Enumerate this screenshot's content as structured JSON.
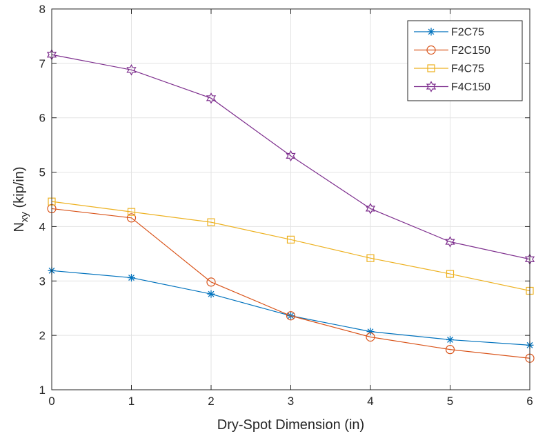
{
  "chart_data": {
    "type": "line",
    "title": "",
    "xlabel": "Dry-Spot Dimension (in)",
    "ylabel": "N_xy (kip/in)",
    "ylabel_parts": {
      "main": "N",
      "subscript": "xy",
      "rest": " (kip/in)"
    },
    "xlim": [
      0,
      6
    ],
    "ylim": [
      1,
      8
    ],
    "x_ticks": [
      "0",
      "1",
      "2",
      "3",
      "4",
      "5",
      "6"
    ],
    "y_ticks": [
      "1",
      "2",
      "3",
      "4",
      "5",
      "6",
      "7",
      "8"
    ],
    "grid": true,
    "legend_position": "top-right",
    "x": [
      0,
      1,
      2,
      3,
      4,
      5,
      6
    ],
    "series": [
      {
        "name": "F2C75",
        "marker": "asterisk",
        "color": "#0072BD",
        "values": [
          3.19,
          3.06,
          2.76,
          2.36,
          2.07,
          1.92,
          1.82
        ]
      },
      {
        "name": "F2C150",
        "marker": "circle",
        "color": "#D95319",
        "values": [
          4.33,
          4.16,
          2.98,
          2.36,
          1.97,
          1.74,
          1.58
        ]
      },
      {
        "name": "F4C75",
        "marker": "square",
        "color": "#EDB120",
        "values": [
          4.46,
          4.27,
          4.08,
          3.76,
          3.42,
          3.13,
          2.82
        ]
      },
      {
        "name": "F4C150",
        "marker": "hexagram",
        "color": "#7E2F8E",
        "values": [
          7.16,
          6.88,
          6.36,
          5.3,
          4.33,
          3.72,
          3.4
        ]
      }
    ]
  }
}
